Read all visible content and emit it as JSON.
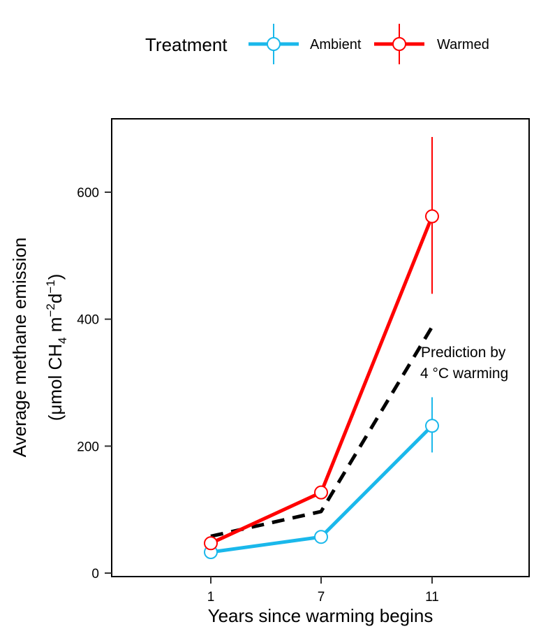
{
  "chart_data": {
    "type": "line",
    "legend": {
      "title": "Treatment",
      "position": "top"
    },
    "categories": [
      "1",
      "7",
      "11"
    ],
    "x": [
      1,
      7,
      11
    ],
    "xlabel": "Years since warming begins",
    "ylabel_line1": "Average methane emission",
    "ylabel_line2": {
      "prefix": "(μmol CH",
      "sub": "4",
      "mid1": " m",
      "sup1": "−2",
      "mid2": "d",
      "sup2": "−1",
      "suffix": ")"
    },
    "ylim": [
      0,
      700
    ],
    "yticks": [
      0,
      200,
      400,
      600
    ],
    "grid": false,
    "series": [
      {
        "name": "Ambient",
        "color": "#1AB8EB",
        "values": [
          33,
          57,
          232
        ],
        "err_low": [
          null,
          null,
          190
        ],
        "err_high": [
          null,
          null,
          277
        ]
      },
      {
        "name": "Warmed",
        "color": "#FF0000",
        "values": [
          47,
          127,
          562
        ],
        "err_low": [
          null,
          null,
          440
        ],
        "err_high": [
          null,
          null,
          687
        ]
      }
    ],
    "prediction": {
      "values": [
        58,
        97,
        388
      ],
      "color": "#000000",
      "label_line1": "Prediction by",
      "label_line2": "4 °C warming"
    }
  }
}
